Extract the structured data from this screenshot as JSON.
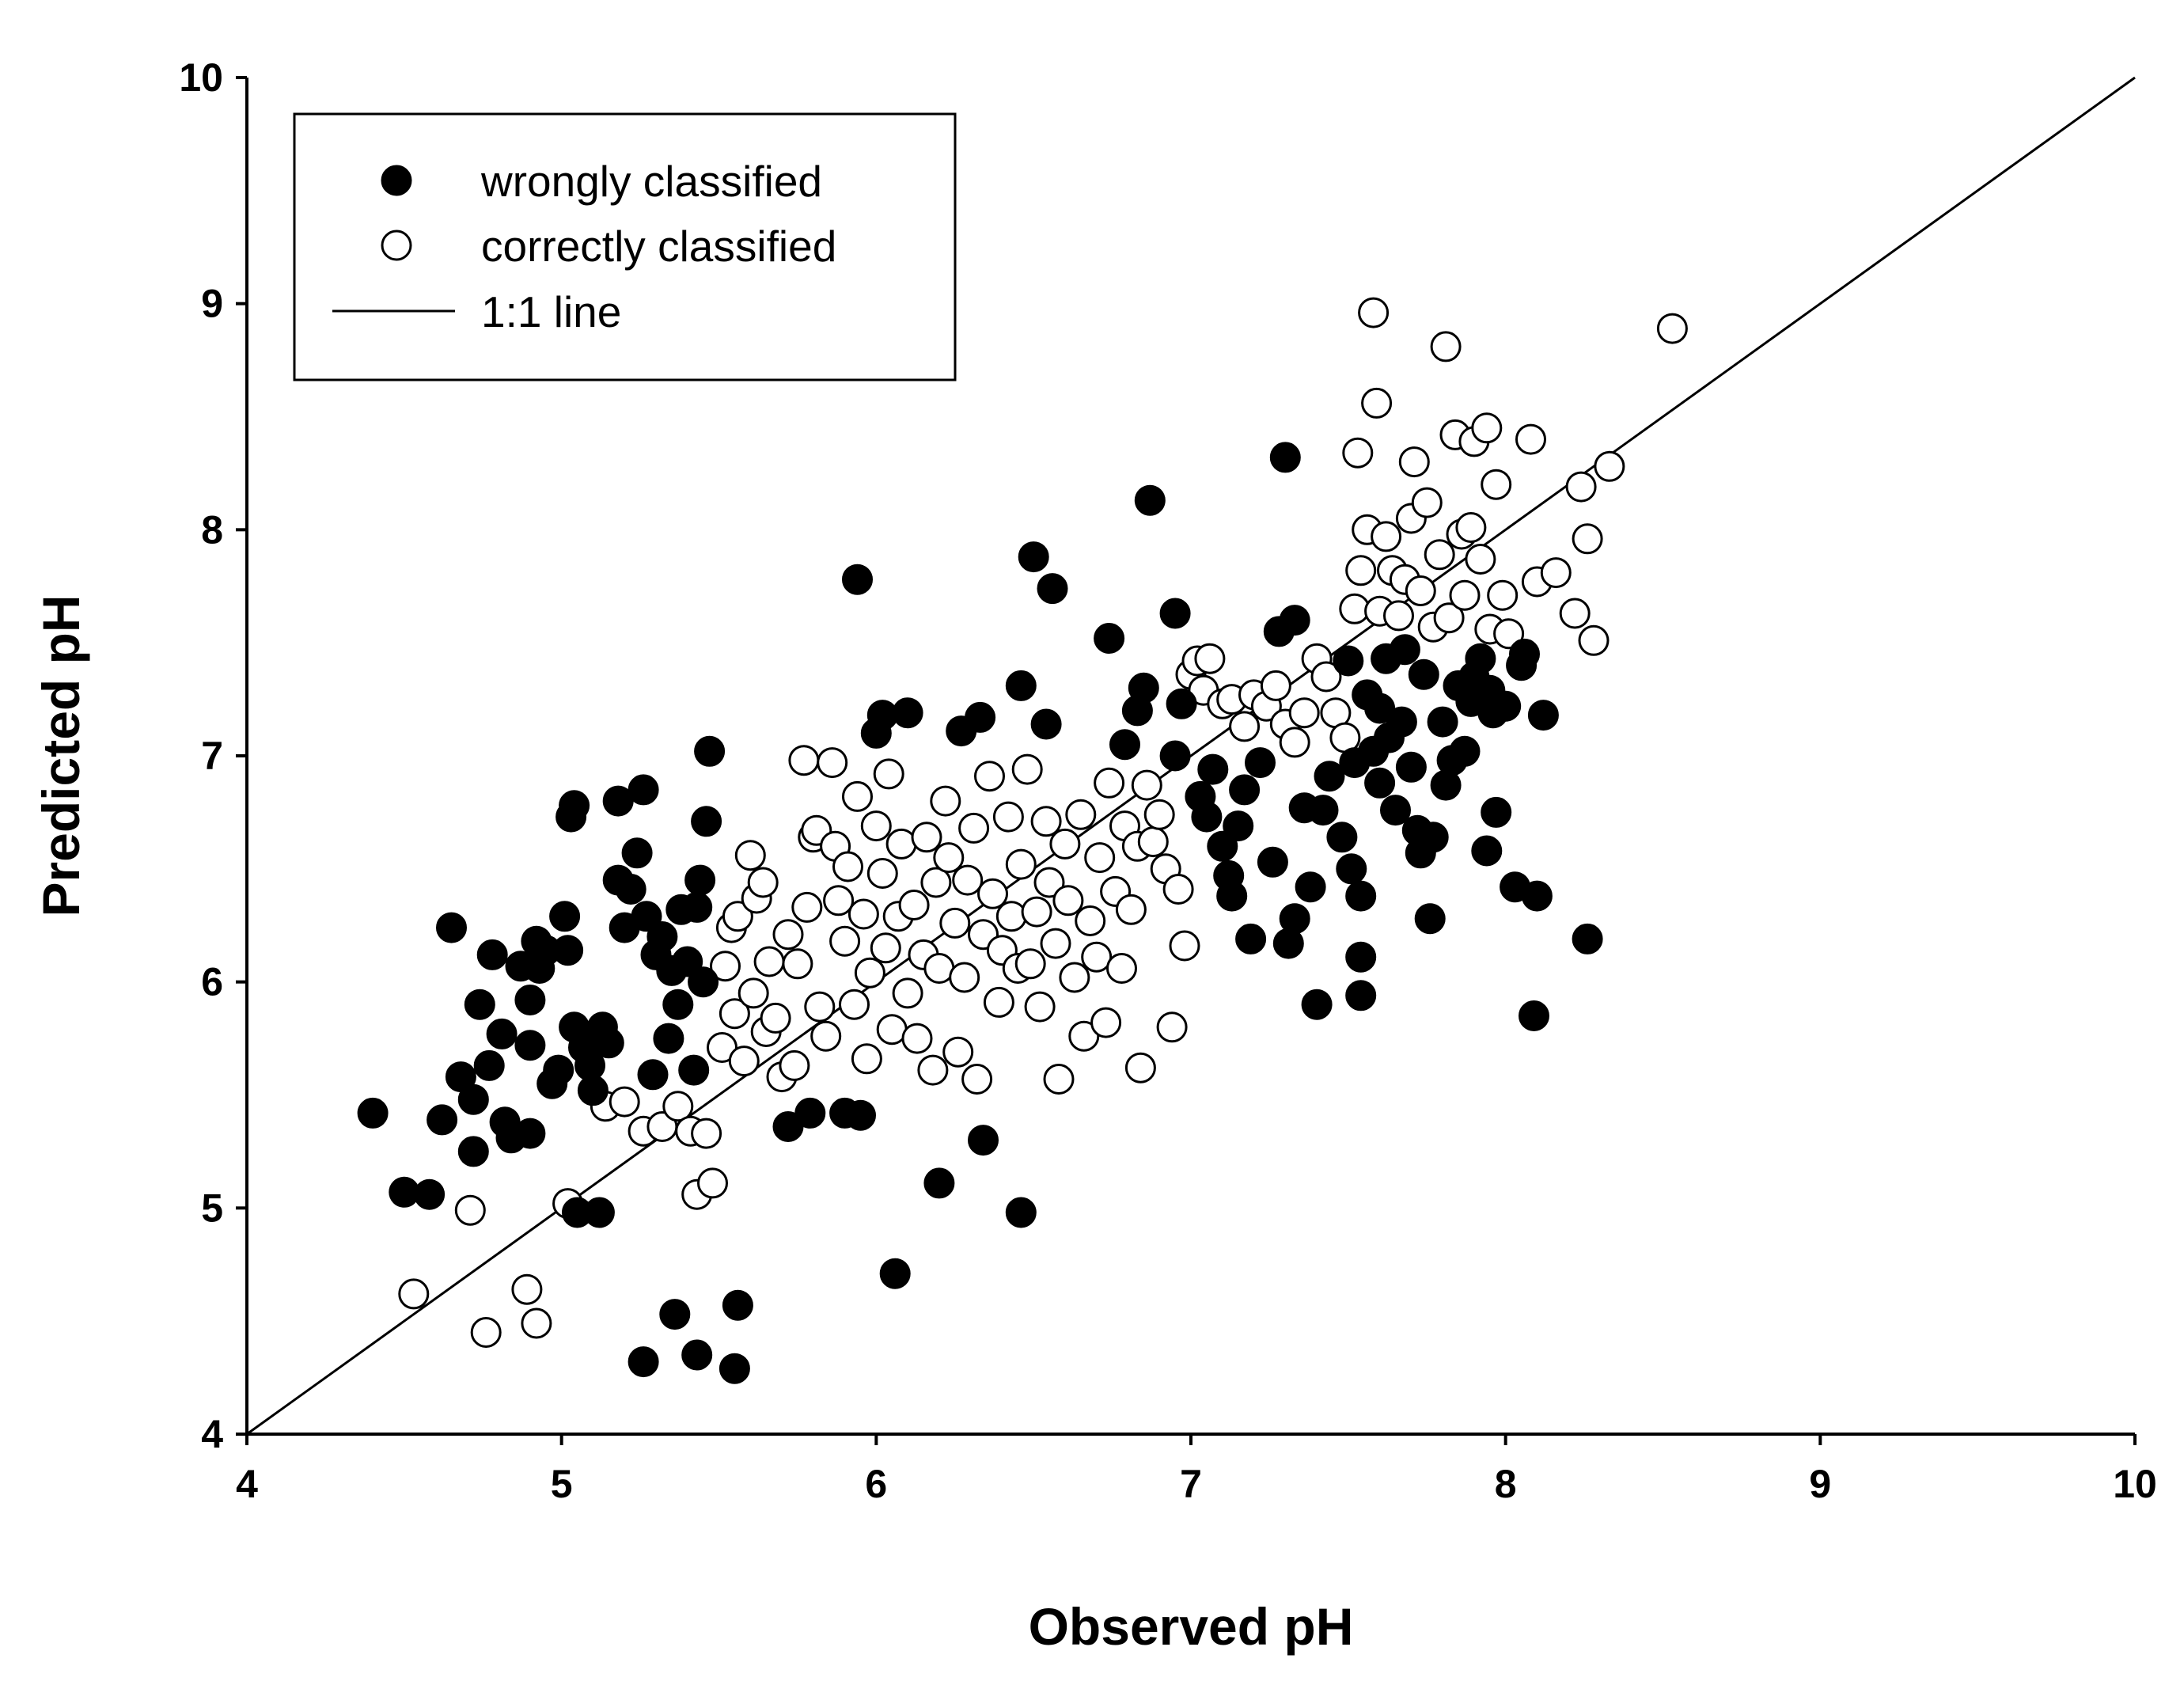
{
  "chart_data": {
    "type": "scatter",
    "xlabel": "Observed pH",
    "ylabel": "Predicted pH",
    "xlim": [
      4,
      10
    ],
    "ylim": [
      4,
      10
    ],
    "xticks": [
      "4",
      "5",
      "6",
      "7",
      "8",
      "9",
      "10"
    ],
    "yticks": [
      "4",
      "5",
      "6",
      "7",
      "8",
      "9",
      "10"
    ],
    "legend_position": "top-left",
    "reference_line": {
      "name": "1:1 line",
      "from": [
        4,
        4
      ],
      "to": [
        10,
        10
      ]
    },
    "series": [
      {
        "name": "wrongly classified",
        "marker": "filled-circle",
        "points": [
          [
            4.4,
            5.42
          ],
          [
            4.5,
            5.07
          ],
          [
            4.58,
            5.06
          ],
          [
            4.62,
            5.39
          ],
          [
            4.65,
            6.24
          ],
          [
            4.68,
            5.58
          ],
          [
            4.72,
            5.25
          ],
          [
            4.72,
            5.48
          ],
          [
            4.74,
            5.9
          ],
          [
            4.77,
            5.63
          ],
          [
            4.78,
            6.12
          ],
          [
            4.81,
            5.77
          ],
          [
            4.82,
            5.38
          ],
          [
            4.84,
            5.31
          ],
          [
            4.87,
            6.07
          ],
          [
            4.9,
            5.33
          ],
          [
            4.9,
            5.92
          ],
          [
            4.9,
            5.72
          ],
          [
            4.92,
            6.18
          ],
          [
            4.93,
            6.06
          ],
          [
            4.95,
            6.14
          ],
          [
            4.97,
            5.55
          ],
          [
            4.99,
            5.61
          ],
          [
            5.01,
            6.29
          ],
          [
            5.02,
            6.14
          ],
          [
            5.03,
            6.73
          ],
          [
            5.04,
            6.78
          ],
          [
            5.04,
            5.8
          ],
          [
            5.05,
            4.98
          ],
          [
            5.07,
            5.71
          ],
          [
            5.09,
            5.63
          ],
          [
            5.1,
            5.52
          ],
          [
            5.12,
            4.98
          ],
          [
            5.13,
            5.8
          ],
          [
            5.15,
            5.73
          ],
          [
            5.18,
            6.45
          ],
          [
            5.18,
            6.8
          ],
          [
            5.2,
            6.24
          ],
          [
            5.22,
            6.41
          ],
          [
            5.24,
            6.57
          ],
          [
            5.26,
            6.85
          ],
          [
            5.27,
            6.29
          ],
          [
            5.29,
            5.59
          ],
          [
            5.3,
            6.12
          ],
          [
            5.32,
            6.2
          ],
          [
            5.34,
            5.75
          ],
          [
            5.35,
            6.05
          ],
          [
            5.37,
            5.9
          ],
          [
            5.38,
            6.32
          ],
          [
            5.4,
            6.09
          ],
          [
            5.42,
            5.61
          ],
          [
            5.43,
            6.33
          ],
          [
            5.44,
            6.45
          ],
          [
            5.45,
            6.0
          ],
          [
            5.46,
            6.71
          ],
          [
            5.47,
            7.02
          ],
          [
            5.26,
            4.32
          ],
          [
            5.36,
            4.53
          ],
          [
            5.43,
            4.35
          ],
          [
            5.55,
            4.29
          ],
          [
            5.56,
            4.57
          ],
          [
            5.72,
            5.36
          ],
          [
            5.79,
            5.42
          ],
          [
            5.9,
            5.42
          ],
          [
            5.95,
            5.41
          ],
          [
            5.94,
            7.78
          ],
          [
            6.0,
            7.1
          ],
          [
            6.02,
            7.18
          ],
          [
            6.1,
            7.19
          ],
          [
            6.06,
            4.71
          ],
          [
            6.2,
            5.11
          ],
          [
            6.27,
            7.11
          ],
          [
            6.33,
            7.17
          ],
          [
            6.34,
            5.3
          ],
          [
            6.46,
            7.31
          ],
          [
            6.46,
            4.98
          ],
          [
            6.5,
            7.88
          ],
          [
            6.54,
            7.14
          ],
          [
            6.56,
            7.74
          ],
          [
            6.74,
            7.52
          ],
          [
            6.79,
            7.05
          ],
          [
            6.83,
            7.2
          ],
          [
            6.85,
            7.3
          ],
          [
            6.87,
            8.13
          ],
          [
            6.95,
            7.63
          ],
          [
            6.95,
            7.0
          ],
          [
            6.97,
            7.23
          ],
          [
            7.03,
            6.82
          ],
          [
            7.05,
            6.73
          ],
          [
            7.07,
            6.94
          ],
          [
            7.1,
            6.6
          ],
          [
            7.12,
            6.47
          ],
          [
            7.13,
            6.38
          ],
          [
            7.15,
            6.69
          ],
          [
            7.17,
            6.85
          ],
          [
            7.19,
            6.19
          ],
          [
            7.22,
            6.97
          ],
          [
            7.26,
            6.53
          ],
          [
            7.28,
            7.55
          ],
          [
            7.3,
            8.32
          ],
          [
            7.31,
            6.17
          ],
          [
            7.33,
            7.6
          ],
          [
            7.33,
            6.28
          ],
          [
            7.36,
            6.77
          ],
          [
            7.38,
            6.42
          ],
          [
            7.4,
            5.9
          ],
          [
            7.42,
            6.76
          ],
          [
            7.44,
            6.91
          ],
          [
            7.48,
            6.64
          ],
          [
            7.5,
            7.42
          ],
          [
            7.51,
            6.5
          ],
          [
            7.52,
            6.97
          ],
          [
            7.54,
            6.38
          ],
          [
            7.54,
            6.11
          ],
          [
            7.54,
            5.94
          ],
          [
            7.56,
            7.27
          ],
          [
            7.58,
            7.02
          ],
          [
            7.6,
            6.88
          ],
          [
            7.6,
            7.21
          ],
          [
            7.62,
            7.43
          ],
          [
            7.63,
            7.08
          ],
          [
            7.65,
            6.76
          ],
          [
            7.67,
            7.15
          ],
          [
            7.68,
            7.47
          ],
          [
            7.7,
            6.95
          ],
          [
            7.72,
            6.67
          ],
          [
            7.73,
            6.57
          ],
          [
            7.74,
            7.36
          ],
          [
            7.76,
            6.28
          ],
          [
            7.77,
            6.64
          ],
          [
            7.8,
            7.15
          ],
          [
            7.81,
            6.87
          ],
          [
            7.83,
            6.98
          ],
          [
            7.85,
            7.31
          ],
          [
            7.87,
            7.02
          ],
          [
            7.89,
            7.24
          ],
          [
            7.9,
            7.35
          ],
          [
            7.92,
            7.43
          ],
          [
            7.94,
            6.58
          ],
          [
            7.95,
            7.29
          ],
          [
            7.96,
            7.19
          ],
          [
            7.97,
            6.75
          ],
          [
            8.0,
            7.22
          ],
          [
            8.03,
            6.42
          ],
          [
            8.05,
            7.4
          ],
          [
            8.06,
            7.45
          ],
          [
            8.09,
            5.85
          ],
          [
            8.1,
            6.38
          ],
          [
            8.12,
            7.18
          ],
          [
            8.26,
            6.19
          ]
        ]
      },
      {
        "name": "correctly classified",
        "marker": "open-circle",
        "points": [
          [
            4.53,
            4.62
          ],
          [
            4.71,
            4.99
          ],
          [
            4.76,
            4.45
          ],
          [
            4.89,
            4.64
          ],
          [
            4.92,
            4.49
          ],
          [
            5.02,
            5.02
          ],
          [
            5.14,
            5.45
          ],
          [
            5.2,
            5.47
          ],
          [
            5.26,
            5.34
          ],
          [
            5.32,
            5.36
          ],
          [
            5.37,
            5.45
          ],
          [
            5.41,
            5.34
          ],
          [
            5.43,
            5.06
          ],
          [
            5.46,
            5.33
          ],
          [
            5.48,
            5.11
          ],
          [
            5.51,
            5.71
          ],
          [
            5.52,
            6.07
          ],
          [
            5.54,
            6.24
          ],
          [
            5.55,
            5.86
          ],
          [
            5.56,
            6.29
          ],
          [
            5.58,
            5.65
          ],
          [
            5.6,
            6.56
          ],
          [
            5.61,
            5.95
          ],
          [
            5.62,
            6.37
          ],
          [
            5.64,
            6.44
          ],
          [
            5.65,
            5.78
          ],
          [
            5.66,
            6.09
          ],
          [
            5.68,
            5.84
          ],
          [
            5.7,
            5.58
          ],
          [
            5.72,
            6.21
          ],
          [
            5.74,
            5.63
          ],
          [
            5.75,
            6.08
          ],
          [
            5.77,
            6.98
          ],
          [
            5.78,
            6.33
          ],
          [
            5.8,
            6.64
          ],
          [
            5.81,
            6.67
          ],
          [
            5.82,
            5.89
          ],
          [
            5.84,
            5.76
          ],
          [
            5.86,
            6.97
          ],
          [
            5.87,
            6.6
          ],
          [
            5.88,
            6.36
          ],
          [
            5.9,
            6.18
          ],
          [
            5.91,
            6.51
          ],
          [
            5.93,
            5.9
          ],
          [
            5.94,
            6.82
          ],
          [
            5.96,
            6.3
          ],
          [
            5.97,
            5.66
          ],
          [
            5.98,
            6.04
          ],
          [
            6.0,
            6.69
          ],
          [
            6.02,
            6.48
          ],
          [
            6.03,
            6.15
          ],
          [
            6.04,
            6.92
          ],
          [
            6.05,
            5.79
          ],
          [
            6.07,
            6.29
          ],
          [
            6.08,
            6.61
          ],
          [
            6.1,
            5.95
          ],
          [
            6.12,
            6.34
          ],
          [
            6.13,
            5.75
          ],
          [
            6.15,
            6.12
          ],
          [
            6.16,
            6.64
          ],
          [
            6.18,
            5.61
          ],
          [
            6.19,
            6.44
          ],
          [
            6.2,
            6.06
          ],
          [
            6.22,
            6.8
          ],
          [
            6.23,
            6.55
          ],
          [
            6.25,
            6.26
          ],
          [
            6.26,
            5.69
          ],
          [
            6.28,
            6.02
          ],
          [
            6.29,
            6.45
          ],
          [
            6.31,
            6.68
          ],
          [
            6.32,
            5.57
          ],
          [
            6.34,
            6.21
          ],
          [
            6.36,
            6.91
          ],
          [
            6.37,
            6.39
          ],
          [
            6.39,
            5.91
          ],
          [
            6.4,
            6.14
          ],
          [
            6.42,
            6.73
          ],
          [
            6.43,
            6.29
          ],
          [
            6.45,
            6.06
          ],
          [
            6.46,
            6.52
          ],
          [
            6.48,
            6.94
          ],
          [
            6.49,
            6.08
          ],
          [
            6.51,
            6.31
          ],
          [
            6.52,
            5.89
          ],
          [
            6.54,
            6.71
          ],
          [
            6.55,
            6.44
          ],
          [
            6.57,
            6.17
          ],
          [
            6.58,
            5.57
          ],
          [
            6.6,
            6.61
          ],
          [
            6.61,
            6.36
          ],
          [
            6.63,
            6.02
          ],
          [
            6.65,
            6.74
          ],
          [
            6.66,
            5.76
          ],
          [
            6.68,
            6.27
          ],
          [
            6.7,
            6.11
          ],
          [
            6.71,
            6.55
          ],
          [
            6.73,
            5.82
          ],
          [
            6.74,
            6.88
          ],
          [
            6.76,
            6.4
          ],
          [
            6.78,
            6.06
          ],
          [
            6.79,
            6.69
          ],
          [
            6.81,
            6.32
          ],
          [
            6.83,
            6.6
          ],
          [
            6.84,
            5.62
          ],
          [
            6.86,
            6.87
          ],
          [
            6.88,
            6.62
          ],
          [
            6.9,
            6.74
          ],
          [
            6.92,
            6.5
          ],
          [
            6.94,
            5.8
          ],
          [
            6.96,
            6.41
          ],
          [
            6.98,
            6.16
          ],
          [
            7.0,
            7.36
          ],
          [
            7.02,
            7.42
          ],
          [
            7.04,
            7.29
          ],
          [
            7.06,
            7.43
          ],
          [
            7.1,
            7.23
          ],
          [
            7.13,
            7.25
          ],
          [
            7.17,
            7.13
          ],
          [
            7.2,
            7.27
          ],
          [
            7.24,
            7.22
          ],
          [
            7.27,
            7.31
          ],
          [
            7.3,
            7.14
          ],
          [
            7.33,
            7.06
          ],
          [
            7.36,
            7.19
          ],
          [
            7.4,
            7.43
          ],
          [
            7.43,
            7.35
          ],
          [
            7.46,
            7.19
          ],
          [
            7.49,
            7.08
          ],
          [
            7.52,
            7.65
          ],
          [
            7.53,
            8.34
          ],
          [
            7.54,
            7.82
          ],
          [
            7.56,
            8.0
          ],
          [
            7.58,
            8.96
          ],
          [
            7.59,
            8.56
          ],
          [
            7.6,
            7.64
          ],
          [
            7.62,
            7.97
          ],
          [
            7.64,
            7.82
          ],
          [
            7.66,
            7.62
          ],
          [
            7.68,
            7.78
          ],
          [
            7.7,
            8.05
          ],
          [
            7.71,
            8.3
          ],
          [
            7.73,
            7.73
          ],
          [
            7.75,
            8.12
          ],
          [
            7.77,
            7.57
          ],
          [
            7.79,
            7.89
          ],
          [
            7.81,
            8.81
          ],
          [
            7.82,
            7.61
          ],
          [
            7.84,
            8.42
          ],
          [
            7.86,
            7.98
          ],
          [
            7.87,
            7.71
          ],
          [
            7.89,
            8.01
          ],
          [
            7.9,
            8.39
          ],
          [
            7.92,
            7.87
          ],
          [
            7.94,
            8.45
          ],
          [
            7.95,
            7.56
          ],
          [
            7.97,
            8.2
          ],
          [
            7.99,
            7.71
          ],
          [
            8.01,
            7.54
          ],
          [
            8.08,
            8.4
          ],
          [
            8.1,
            7.77
          ],
          [
            8.16,
            7.81
          ],
          [
            8.22,
            7.63
          ],
          [
            8.24,
            8.19
          ],
          [
            8.26,
            7.96
          ],
          [
            8.28,
            7.51
          ],
          [
            8.33,
            8.28
          ],
          [
            8.53,
            8.89
          ]
        ]
      }
    ]
  }
}
